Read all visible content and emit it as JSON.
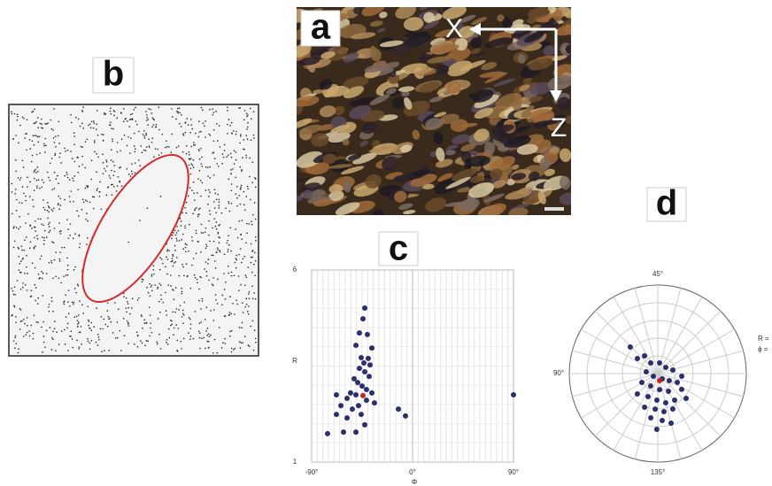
{
  "panels": {
    "a": {
      "label": "a",
      "x_axis": "X",
      "z_axis": "Z"
    },
    "b": {
      "label": "b"
    }
  },
  "chart_data": [
    {
      "type": "scatter",
      "label": "c",
      "xlabel": "Φ",
      "ylabel": "R",
      "xlim": [
        -90,
        90
      ],
      "ylim": [
        1,
        6
      ],
      "xticks": [
        {
          "value": -90,
          "label": "-90°"
        },
        {
          "value": 0,
          "label": "0°"
        },
        {
          "value": 90,
          "label": "90°"
        }
      ],
      "yticks": [
        1,
        6
      ],
      "grid": true,
      "series": [
        {
          "color": "#2b2f6e",
          "x": [
            -42.6,
            -44.2,
            -47.4,
            -40.3,
            -50.5,
            -36.3,
            -45.8,
            -39.5,
            -43.4,
            -37.9,
            -47.4,
            -42.6,
            -38.7,
            -52.1,
            -48.9,
            -45.0,
            -41.1,
            -36.3,
            -55.3,
            -50.5,
            -67.9,
            -58.4,
            -41.1,
            -48.2,
            -63.9,
            -34.0,
            -53.7,
            -45.8,
            -58.4,
            -67.9,
            -42.6,
            -50.5,
            -61.6,
            -75.8,
            -12.6,
            -6.3,
            90
          ],
          "values": [
            5.01,
            4.73,
            4.36,
            4.32,
            4.04,
            3.97,
            3.72,
            3.7,
            3.58,
            3.53,
            3.44,
            3.35,
            3.23,
            3.17,
            3.07,
            2.98,
            2.89,
            2.8,
            2.8,
            2.75,
            2.75,
            2.66,
            2.61,
            2.47,
            2.47,
            2.54,
            2.38,
            2.24,
            2.15,
            2.24,
            1.97,
            1.78,
            1.78,
            1.74,
            2.38,
            2.2,
            2.75
          ]
        },
        {
          "color": "#c0281e",
          "x": [
            -44.2
          ],
          "values": [
            2.73
          ]
        }
      ]
    },
    {
      "type": "polar",
      "label": "d",
      "rlim": [
        0,
        5
      ],
      "theta_labels": [
        {
          "value": 45,
          "label": "45°"
        },
        {
          "value": 90,
          "label": "90°"
        },
        {
          "value": 135,
          "label": "135°"
        }
      ],
      "annotations": [
        "R =",
        "ϕ ="
      ],
      "series": [
        {
          "color": "#2b2f6e",
          "theta": [
            68.0,
            71.8,
            63.4,
            61.8,
            40.3,
            19.0,
            6.6,
            85.6,
            -74.5,
            -25.1,
            -15.8,
            -12.2,
            -75.5,
            -59.9,
            -41.8,
            -29.5,
            -16.8,
            -67.5,
            -56.5,
            -46.0,
            -37.4,
            -28.8,
            -55.7,
            -47.1,
            -40.4,
            -33.5,
            -49.5,
            -42.3,
            -37.5,
            -45.5,
            -3.2,
            -20.6
          ],
          "values": [
            2.16,
            1.43,
            1.25,
            0.72,
            0.61,
            0.57,
            0.87,
            0.66,
            0.29,
            0.39,
            0.76,
            1.21,
            1.03,
            0.81,
            0.91,
            1.17,
            1.62,
            1.63,
            1.41,
            1.5,
            1.71,
            1.78,
            2.04,
            2.01,
            2.18,
            2.17,
            2.53,
            2.66,
            2.9,
            3.15,
            1.36,
            2.13
          ]
        },
        {
          "color": "#c0281e",
          "theta": [
            -38.0
          ],
          "values": [
            0.41
          ]
        }
      ]
    }
  ]
}
